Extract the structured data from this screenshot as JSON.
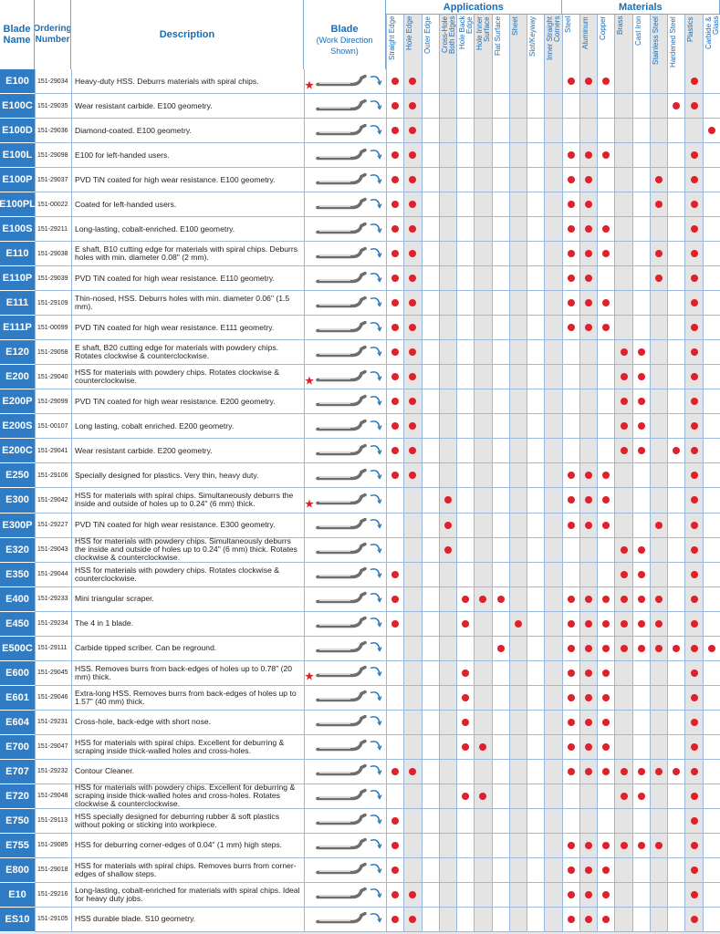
{
  "header": {
    "blade_name": "Blade Name",
    "ordering_number": "Ordering Number",
    "description": "Description",
    "blade": "Blade",
    "blade_note": "(Work Direction Shown)",
    "applications": "Applications",
    "materials": "Materials",
    "application_columns": [
      "Straight Edge",
      "Hole Edge",
      "Outer Edge",
      "Cross-Hole Both Edges",
      "Hole Back Edge",
      "Hole Inner Surface",
      "Flat Surface",
      "Sheet",
      "Slot/Keyway",
      "Inner Straight Corners"
    ],
    "material_columns": [
      "Steel",
      "Aluminum",
      "Copper",
      "Brass",
      "Cast Iron",
      "Stainless Steel",
      "Hardened Steel",
      "Plastics",
      "Carbide & Glass"
    ]
  },
  "table": {
    "rows": [
      {
        "name": "E100",
        "number": "151-29034",
        "description": "Heavy-duty HSS. Deburrs materials with spiral chips.",
        "starred": true,
        "applications": [
          1,
          1,
          0,
          0,
          0,
          0,
          0,
          0,
          0,
          0
        ],
        "materials": [
          1,
          1,
          1,
          0,
          0,
          0,
          0,
          1,
          0
        ]
      },
      {
        "name": "E100C",
        "number": "151-29035",
        "description": "Wear resistant carbide. E100 geometry.",
        "applications": [
          1,
          1,
          0,
          0,
          0,
          0,
          0,
          0,
          0,
          0
        ],
        "materials": [
          0,
          0,
          0,
          0,
          0,
          0,
          1,
          1,
          0
        ]
      },
      {
        "name": "E100D",
        "number": "151-29036",
        "description": "Diamond-coated. E100 geometry.",
        "applications": [
          1,
          1,
          0,
          0,
          0,
          0,
          0,
          0,
          0,
          0
        ],
        "materials": [
          0,
          0,
          0,
          0,
          0,
          0,
          0,
          0,
          1
        ]
      },
      {
        "name": "E100L",
        "number": "151-29098",
        "description": "E100 for left-handed users.",
        "applications": [
          1,
          1,
          0,
          0,
          0,
          0,
          0,
          0,
          0,
          0
        ],
        "materials": [
          1,
          1,
          1,
          0,
          0,
          0,
          0,
          1,
          0
        ]
      },
      {
        "name": "E100P",
        "number": "151-29037",
        "description": "PVD TiN coated for high wear resistance. E100 geometry.",
        "applications": [
          1,
          1,
          0,
          0,
          0,
          0,
          0,
          0,
          0,
          0
        ],
        "materials": [
          1,
          1,
          0,
          0,
          0,
          1,
          0,
          1,
          0
        ]
      },
      {
        "name": "E100PL",
        "number": "151-00022",
        "description": "Coated for left-handed users.",
        "applications": [
          1,
          1,
          0,
          0,
          0,
          0,
          0,
          0,
          0,
          0
        ],
        "materials": [
          1,
          1,
          0,
          0,
          0,
          1,
          0,
          1,
          0
        ]
      },
      {
        "name": "E100S",
        "number": "151-29211",
        "description": "Long-lasting, cobalt-enriched. E100 geometry.",
        "applications": [
          1,
          1,
          0,
          0,
          0,
          0,
          0,
          0,
          0,
          0
        ],
        "materials": [
          1,
          1,
          1,
          0,
          0,
          0,
          0,
          1,
          0
        ]
      },
      {
        "name": "E110",
        "number": "151-29038",
        "description": "E shaft, B10 cutting edge for materials with spiral chips. Deburrs holes with min. diameter 0.08\" (2 mm).",
        "applications": [
          1,
          1,
          0,
          0,
          0,
          0,
          0,
          0,
          0,
          0
        ],
        "materials": [
          1,
          1,
          1,
          0,
          0,
          1,
          0,
          1,
          0
        ]
      },
      {
        "name": "E110P",
        "number": "151-29039",
        "description": "PVD TiN coated for high wear resistance. E110 geometry.",
        "applications": [
          1,
          1,
          0,
          0,
          0,
          0,
          0,
          0,
          0,
          0
        ],
        "materials": [
          1,
          1,
          0,
          0,
          0,
          1,
          0,
          1,
          0
        ]
      },
      {
        "name": "E111",
        "number": "151-29109",
        "description": "Thin-nosed, HSS. Deburrs holes with min. diameter 0.06\" (1.5 mm).",
        "applications": [
          1,
          1,
          0,
          0,
          0,
          0,
          0,
          0,
          0,
          0
        ],
        "materials": [
          1,
          1,
          1,
          0,
          0,
          0,
          0,
          1,
          0
        ]
      },
      {
        "name": "E111P",
        "number": "151-00099",
        "description": "PVD TiN coated for high wear resistance. E111 geometry.",
        "applications": [
          1,
          1,
          0,
          0,
          0,
          0,
          0,
          0,
          0,
          0
        ],
        "materials": [
          1,
          1,
          1,
          0,
          0,
          0,
          0,
          1,
          0
        ]
      },
      {
        "name": "E120",
        "number": "151-29058",
        "description": "E shaft, B20 cutting edge for materials with powdery chips. Rotates clockwise & counterclockwise.",
        "applications": [
          1,
          1,
          0,
          0,
          0,
          0,
          0,
          0,
          0,
          0
        ],
        "materials": [
          0,
          0,
          0,
          1,
          1,
          0,
          0,
          1,
          0
        ]
      },
      {
        "name": "E200",
        "number": "151-29040",
        "description": "HSS for materials with powdery chips. Rotates clockwise & counterclockwise.",
        "starred": true,
        "applications": [
          1,
          1,
          0,
          0,
          0,
          0,
          0,
          0,
          0,
          0
        ],
        "materials": [
          0,
          0,
          0,
          1,
          1,
          0,
          0,
          1,
          0
        ]
      },
      {
        "name": "E200P",
        "number": "151-29099",
        "description": "PVD TiN coated for high wear resistance. E200 geometry.",
        "applications": [
          1,
          1,
          0,
          0,
          0,
          0,
          0,
          0,
          0,
          0
        ],
        "materials": [
          0,
          0,
          0,
          1,
          1,
          0,
          0,
          1,
          0
        ]
      },
      {
        "name": "E200S",
        "number": "151-00107",
        "description": "Long lasting, cobalt enriched. E200 geometry.",
        "applications": [
          1,
          1,
          0,
          0,
          0,
          0,
          0,
          0,
          0,
          0
        ],
        "materials": [
          0,
          0,
          0,
          1,
          1,
          0,
          0,
          1,
          0
        ]
      },
      {
        "name": "E200C",
        "number": "151-29041",
        "description": "Wear resistant carbide. E200 geometry.",
        "applications": [
          1,
          1,
          0,
          0,
          0,
          0,
          0,
          0,
          0,
          0
        ],
        "materials": [
          0,
          0,
          0,
          1,
          1,
          0,
          1,
          1,
          0
        ]
      },
      {
        "name": "E250",
        "number": "151-29106",
        "description": "Specially designed for plastics. Very thin, heavy duty.",
        "applications": [
          1,
          1,
          0,
          0,
          0,
          0,
          0,
          0,
          0,
          0
        ],
        "materials": [
          1,
          1,
          1,
          0,
          0,
          0,
          0,
          1,
          0
        ]
      },
      {
        "name": "E300",
        "number": "151-29042",
        "description": "HSS for materials with spiral chips. Simultaneously deburrs the inside and outside of holes up to 0.24\" (6 mm) thick.",
        "starred": true,
        "applications": [
          0,
          0,
          0,
          1,
          0,
          0,
          0,
          0,
          0,
          0
        ],
        "materials": [
          1,
          1,
          1,
          0,
          0,
          0,
          0,
          1,
          0
        ]
      },
      {
        "name": "E300P",
        "number": "151-29227",
        "description": "PVD TiN coated for high wear resistance. E300 geometry.",
        "applications": [
          0,
          0,
          0,
          1,
          0,
          0,
          0,
          0,
          0,
          0
        ],
        "materials": [
          1,
          1,
          1,
          0,
          0,
          1,
          0,
          1,
          0
        ]
      },
      {
        "name": "E320",
        "number": "151-29043",
        "description": "HSS for materials with powdery chips. Simultaneously deburrs the inside and outside of holes up to 0.24\" (6 mm) thick. Rotates clockwise & counterclockwise.",
        "applications": [
          0,
          0,
          0,
          1,
          0,
          0,
          0,
          0,
          0,
          0
        ],
        "materials": [
          0,
          0,
          0,
          1,
          1,
          0,
          0,
          1,
          0
        ]
      },
      {
        "name": "E350",
        "number": "151-29044",
        "description": "HSS for materials with powdery chips. Rotates clockwise & counterclockwise.",
        "applications": [
          1,
          0,
          0,
          0,
          0,
          0,
          0,
          0,
          0,
          0
        ],
        "materials": [
          0,
          0,
          0,
          1,
          1,
          0,
          0,
          1,
          0
        ]
      },
      {
        "name": "E400",
        "number": "151-29233",
        "description": "Mini triangular scraper.",
        "applications": [
          1,
          0,
          0,
          0,
          1,
          1,
          1,
          0,
          0,
          0
        ],
        "materials": [
          1,
          1,
          1,
          1,
          1,
          1,
          0,
          1,
          0
        ]
      },
      {
        "name": "E450",
        "number": "151-29234",
        "description": "The 4 in 1 blade.",
        "applications": [
          1,
          0,
          0,
          0,
          1,
          0,
          0,
          1,
          0,
          0
        ],
        "materials": [
          1,
          1,
          1,
          1,
          1,
          1,
          0,
          1,
          0
        ]
      },
      {
        "name": "E500C",
        "number": "151-29111",
        "description": "Carbide tipped scriber. Can be reground.",
        "applications": [
          0,
          0,
          0,
          0,
          0,
          0,
          1,
          0,
          0,
          0
        ],
        "materials": [
          1,
          1,
          1,
          1,
          1,
          1,
          1,
          1,
          1
        ]
      },
      {
        "name": "E600",
        "number": "151-29045",
        "description": "HSS. Removes burrs from back-edges of holes up to 0.78\" (20 mm) thick.",
        "starred": true,
        "applications": [
          0,
          0,
          0,
          0,
          1,
          0,
          0,
          0,
          0,
          0
        ],
        "materials": [
          1,
          1,
          1,
          0,
          0,
          0,
          0,
          1,
          0
        ]
      },
      {
        "name": "E601",
        "number": "151-29046",
        "description": "Extra-long HSS. Removes burrs from back-edges of holes up to 1.57\" (40 mm) thick.",
        "applications": [
          0,
          0,
          0,
          0,
          1,
          0,
          0,
          0,
          0,
          0
        ],
        "materials": [
          1,
          1,
          1,
          0,
          0,
          0,
          0,
          1,
          0
        ]
      },
      {
        "name": "E604",
        "number": "151-29231",
        "description": "Cross-hole, back-edge with short nose.",
        "applications": [
          0,
          0,
          0,
          0,
          1,
          0,
          0,
          0,
          0,
          0
        ],
        "materials": [
          1,
          1,
          1,
          0,
          0,
          0,
          0,
          1,
          0
        ]
      },
      {
        "name": "E700",
        "number": "151-29047",
        "description": "HSS for materials with spiral chips. Excellent for deburring & scraping inside thick-walled holes and cross-holes.",
        "applications": [
          0,
          0,
          0,
          0,
          1,
          1,
          0,
          0,
          0,
          0
        ],
        "materials": [
          1,
          1,
          1,
          0,
          0,
          0,
          0,
          1,
          0
        ]
      },
      {
        "name": "E707",
        "number": "151-29232",
        "description": "Contour Cleaner.",
        "applications": [
          1,
          1,
          0,
          0,
          0,
          0,
          0,
          0,
          0,
          0
        ],
        "materials": [
          1,
          1,
          1,
          1,
          1,
          1,
          1,
          1,
          0
        ]
      },
      {
        "name": "E720",
        "number": "151-29048",
        "description": "HSS for materials with powdery chips. Excellent for deburring & scraping inside thick-walled holes and cross-holes. Rotates clockwise & counterclockwise.",
        "applications": [
          0,
          0,
          0,
          0,
          1,
          1,
          0,
          0,
          0,
          0
        ],
        "materials": [
          0,
          0,
          0,
          1,
          1,
          0,
          0,
          1,
          0
        ]
      },
      {
        "name": "E750",
        "number": "151-29113",
        "description": "HSS specially designed for deburring rubber & soft plastics without poking or sticking into workpiece.",
        "applications": [
          1,
          0,
          0,
          0,
          0,
          0,
          0,
          0,
          0,
          0
        ],
        "materials": [
          0,
          0,
          0,
          0,
          0,
          0,
          0,
          1,
          0
        ]
      },
      {
        "name": "E755",
        "number": "151-29085",
        "description": "HSS for deburring corner-edges of 0.04\" (1 mm) high steps.",
        "applications": [
          1,
          0,
          0,
          0,
          0,
          0,
          0,
          0,
          0,
          0
        ],
        "materials": [
          1,
          1,
          1,
          1,
          1,
          1,
          0,
          1,
          0
        ]
      },
      {
        "name": "E800",
        "number": "151-29018",
        "description": "HSS for materials with spiral chips. Removes burrs from corner-edges of shallow steps.",
        "applications": [
          1,
          0,
          0,
          0,
          0,
          0,
          0,
          0,
          0,
          0
        ],
        "materials": [
          1,
          1,
          1,
          0,
          0,
          0,
          0,
          1,
          0
        ]
      },
      {
        "name": "E10",
        "number": "151-29216",
        "description": "Long-lasting, cobalt-enriched for materials with spiral chips. Ideal for heavy duty jobs.",
        "applications": [
          1,
          1,
          0,
          0,
          0,
          0,
          0,
          0,
          0,
          0
        ],
        "materials": [
          1,
          1,
          1,
          0,
          0,
          0,
          0,
          1,
          0
        ]
      },
      {
        "name": "ES10",
        "number": "151-29105",
        "description": "HSS durable blade. S10 geometry.",
        "applications": [
          1,
          1,
          0,
          0,
          0,
          0,
          0,
          0,
          0,
          0
        ],
        "materials": [
          1,
          1,
          1,
          0,
          0,
          0,
          0,
          1,
          0
        ]
      }
    ]
  }
}
